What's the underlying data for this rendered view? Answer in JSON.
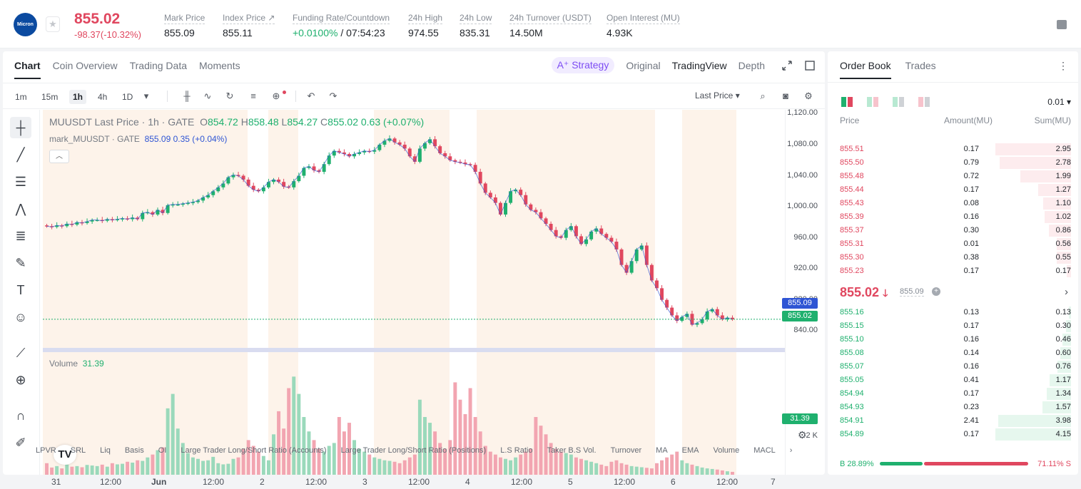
{
  "header": {
    "logo_text": "Micron",
    "price": "855.02",
    "change": "-98.37(-10.32%)",
    "stats": [
      {
        "label": "Mark Price",
        "value": "855.09"
      },
      {
        "label": "Index Price ↗",
        "value": "855.11"
      },
      {
        "label": "Funding Rate/Countdown",
        "value_green": "+0.0100%",
        "value": " / 07:54:23"
      },
      {
        "label": "24h High",
        "value": "974.55"
      },
      {
        "label": "24h Low",
        "value": "835.31"
      },
      {
        "label": "24h Turnover (USDT)",
        "value": "14.50M"
      },
      {
        "label": "Open Interest (MU)",
        "value": "4.93K"
      }
    ]
  },
  "chart_tabs": [
    "Chart",
    "Coin Overview",
    "Trading Data",
    "Moments"
  ],
  "view_tabs": {
    "strategy": "A⁺ Strategy",
    "items": [
      "Original",
      "TradingView",
      "Depth"
    ]
  },
  "timeframes": [
    "1m",
    "15m",
    "1h",
    "4h",
    "1D"
  ],
  "last_price_select": "Last Price",
  "legend": {
    "symbol": "MUUSDT Last Price · 1h · GATE",
    "o": "854.72",
    "h": "858.48",
    "l": "854.27",
    "c": "855.02",
    "chg": "0.63 (+0.07%)",
    "mark_label": "mark_MUUSDT · GATE",
    "mark_val": "855.09 0.35 (+0.04%)",
    "volume_label": "Volume",
    "volume_val": "31.39"
  },
  "price_tags": {
    "mark": "855.09",
    "last": "855.02",
    "volume": "31.39"
  },
  "chart_data": {
    "type": "candlestick",
    "y_ticks": [
      "1,120.00",
      "1,080.00",
      "1,040.00",
      "1,000.00",
      "960.00",
      "920.00",
      "880.00",
      "840.00"
    ],
    "volume_tick": "2 K",
    "x_ticks": [
      "31",
      "12:00",
      "Jun",
      "12:00",
      "2",
      "12:00",
      "3",
      "12:00",
      "4",
      "12:00",
      "5",
      "12:00",
      "6",
      "12:00",
      "7"
    ],
    "ylim": [
      820,
      1125
    ],
    "close_path": [
      975,
      974,
      976,
      975,
      978,
      977,
      980,
      979,
      981,
      983,
      983,
      982,
      984,
      983,
      984,
      985,
      984,
      986,
      984,
      992,
      993,
      990,
      996,
      992,
      1002,
      1003,
      1003,
      1004,
      1005,
      1006,
      1008,
      1012,
      1015,
      1020,
      1025,
      1030,
      1038,
      1041,
      1040,
      1035,
      1027,
      1022,
      1020,
      1025,
      1032,
      1035,
      1032,
      1026,
      1025,
      1033,
      1040,
      1050,
      1052,
      1047,
      1045,
      1055,
      1066,
      1072,
      1070,
      1068,
      1065,
      1068,
      1070,
      1072,
      1071,
      1073,
      1080,
      1085,
      1088,
      1083,
      1080,
      1075,
      1065,
      1058,
      1075,
      1082,
      1087,
      1078,
      1069,
      1065,
      1060,
      1058,
      1057,
      1055,
      1054,
      1045,
      1030,
      1018,
      1012,
      1005,
      990,
      1005,
      1020,
      1022,
      1015,
      1003,
      996,
      993,
      985,
      978,
      970,
      962,
      960,
      970,
      975,
      962,
      952,
      958,
      968,
      972,
      965,
      960,
      955,
      945,
      925,
      915,
      930,
      945,
      950,
      925,
      905,
      895,
      880,
      870,
      860,
      853,
      858,
      862,
      848,
      850,
      855,
      865,
      868,
      860,
      855,
      857,
      855
    ]
  },
  "volume_data": [
    40,
    25,
    30,
    22,
    35,
    28,
    30,
    26,
    34,
    32,
    30,
    35,
    28,
    40,
    36,
    38,
    45,
    42,
    50,
    48,
    60,
    70,
    85,
    95,
    230,
    280,
    160,
    110,
    75,
    60,
    55,
    48,
    50,
    62,
    40,
    36,
    38,
    55,
    60,
    90,
    120,
    100,
    80,
    65,
    50,
    140,
    220,
    160,
    300,
    340,
    280,
    200,
    150,
    120,
    90,
    80,
    100,
    110,
    200,
    150,
    180,
    120,
    90,
    80,
    70,
    60,
    55,
    50,
    48,
    45,
    40,
    50,
    60,
    70,
    260,
    200,
    180,
    150,
    110,
    90,
    120,
    320,
    260,
    210,
    300,
    200,
    150,
    100,
    80,
    70,
    60,
    55,
    50,
    60,
    70,
    80,
    90,
    200,
    170,
    140,
    110,
    90,
    80,
    75,
    70,
    60,
    55,
    50,
    45,
    40,
    35,
    30,
    45,
    50,
    40,
    35,
    30,
    28,
    26,
    24,
    22,
    40,
    50,
    60,
    70,
    80,
    50,
    40,
    35,
    30,
    25,
    22,
    20,
    18,
    15,
    12,
    10
  ],
  "indicators": [
    "LPVR",
    "SRL",
    "Liq",
    "Basis",
    "OI",
    "Large Trader Long/Short Ratio (Accounts)",
    "Large Trader Long/Short Ratio (Positions)",
    "L.S Ratio",
    "Taker B.S Vol.",
    "Turnover",
    "MA",
    "EMA",
    "Volume",
    "MACL"
  ],
  "orderbook": {
    "tabs": [
      "Order Book",
      "Trades"
    ],
    "precision": "0.01",
    "headers": {
      "price": "Price",
      "amount": "Amount(MU)",
      "sum": "Sum(MU)"
    },
    "asks": [
      {
        "price": "855.51",
        "amount": "0.17",
        "sum": "2.95",
        "depth": 1.0
      },
      {
        "price": "855.50",
        "amount": "0.79",
        "sum": "2.78",
        "depth": 0.94
      },
      {
        "price": "855.48",
        "amount": "0.72",
        "sum": "1.99",
        "depth": 0.67
      },
      {
        "price": "855.44",
        "amount": "0.17",
        "sum": "1.27",
        "depth": 0.43
      },
      {
        "price": "855.43",
        "amount": "0.08",
        "sum": "1.10",
        "depth": 0.37
      },
      {
        "price": "855.39",
        "amount": "0.16",
        "sum": "1.02",
        "depth": 0.35
      },
      {
        "price": "855.37",
        "amount": "0.30",
        "sum": "0.86",
        "depth": 0.29
      },
      {
        "price": "855.31",
        "amount": "0.01",
        "sum": "0.56",
        "depth": 0.19
      },
      {
        "price": "855.30",
        "amount": "0.38",
        "sum": "0.55",
        "depth": 0.19
      },
      {
        "price": "855.23",
        "amount": "0.17",
        "sum": "0.17",
        "depth": 0.06
      }
    ],
    "mid_price": "855.02",
    "mid_mark": "855.09",
    "bids": [
      {
        "price": "855.16",
        "amount": "0.13",
        "sum": "0.13",
        "depth": 0.03
      },
      {
        "price": "855.15",
        "amount": "0.17",
        "sum": "0.30",
        "depth": 0.07
      },
      {
        "price": "855.10",
        "amount": "0.16",
        "sum": "0.46",
        "depth": 0.11
      },
      {
        "price": "855.08",
        "amount": "0.14",
        "sum": "0.60",
        "depth": 0.14
      },
      {
        "price": "855.07",
        "amount": "0.16",
        "sum": "0.76",
        "depth": 0.18
      },
      {
        "price": "855.05",
        "amount": "0.41",
        "sum": "1.17",
        "depth": 0.28
      },
      {
        "price": "854.94",
        "amount": "0.17",
        "sum": "1.34",
        "depth": 0.32
      },
      {
        "price": "854.93",
        "amount": "0.23",
        "sum": "1.57",
        "depth": 0.38
      },
      {
        "price": "854.91",
        "amount": "2.41",
        "sum": "3.98",
        "depth": 0.96
      },
      {
        "price": "854.89",
        "amount": "0.17",
        "sum": "4.15",
        "depth": 1.0
      }
    ],
    "buy_ratio": "B 28.89%",
    "sell_ratio": "71.11% S",
    "buy_fraction": 0.2889
  },
  "colors": {
    "up": "#1fb06e",
    "down": "#e0475f",
    "mark": "#2f55d4"
  }
}
